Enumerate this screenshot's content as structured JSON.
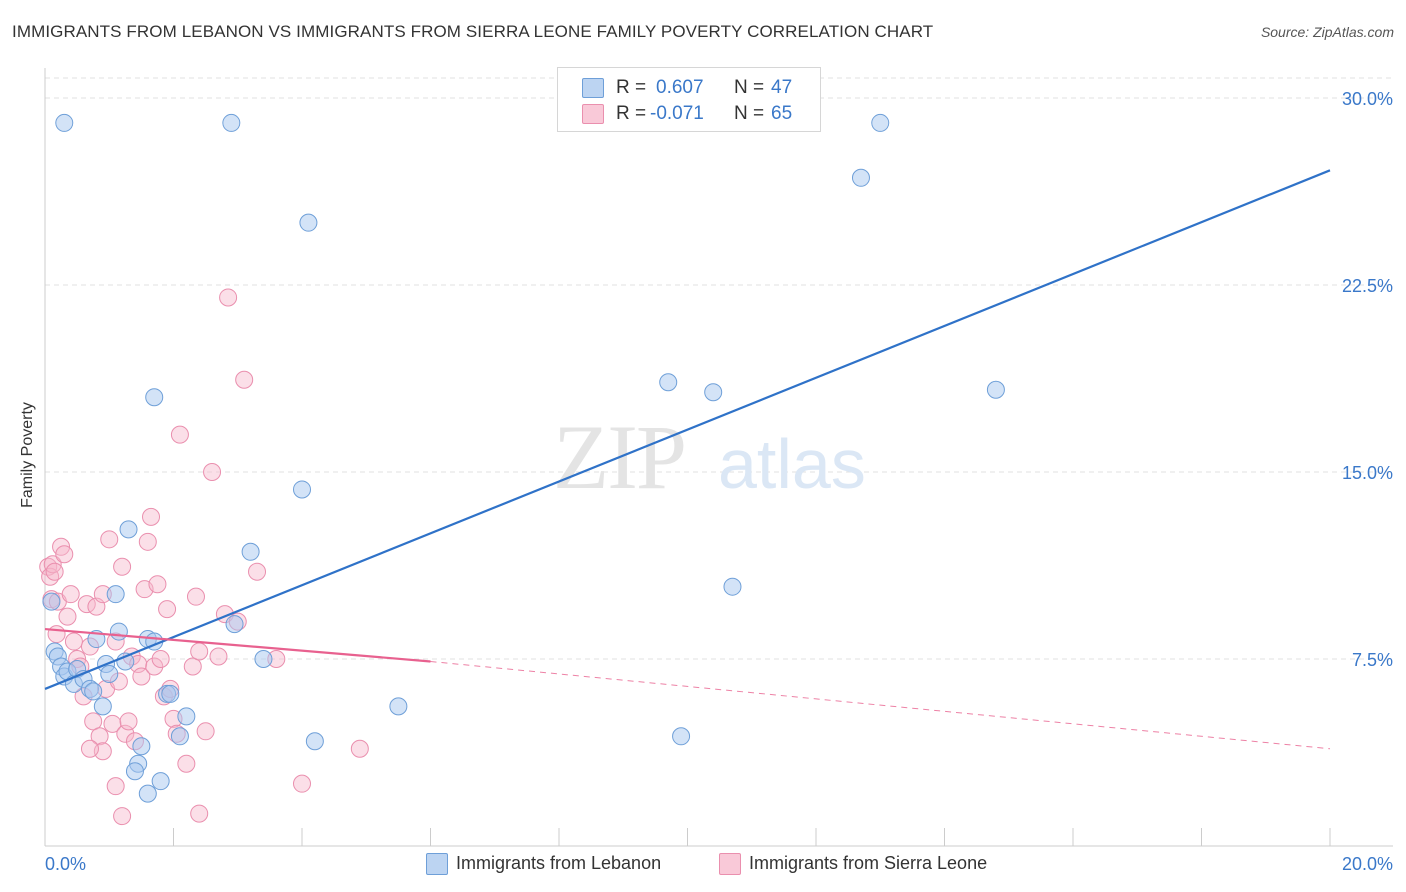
{
  "title": "IMMIGRANTS FROM LEBANON VS IMMIGRANTS FROM SIERRA LEONE FAMILY POVERTY CORRELATION CHART",
  "source": "Source: ZipAtlas.com",
  "watermark": {
    "zip": "ZIP",
    "atlas": "atlas"
  },
  "stats": {
    "lebanon": {
      "r_label": "R =",
      "r_value": "0.607",
      "n_label": "N =",
      "n_value": "47"
    },
    "sierra": {
      "r_label": "R =",
      "r_value": "-0.071",
      "n_label": "N =",
      "n_value": "65"
    }
  },
  "legend": {
    "lebanon": "Immigrants from Lebanon",
    "sierra": "Immigrants from Sierra Leone"
  },
  "colors": {
    "lebanon_fill": "#a8c8ef",
    "lebanon_stroke": "#6e9fd8",
    "lebanon_line": "#2f72c8",
    "sierra_fill": "#f7b8cc",
    "sierra_stroke": "#ea8fae",
    "sierra_line": "#e8618f",
    "axis_text": "#3a78c9",
    "grid": "#e2e2e2"
  },
  "chart_data": {
    "type": "scatter",
    "title": "IMMIGRANTS FROM LEBANON VS IMMIGRANTS FROM SIERRA LEONE FAMILY POVERTY CORRELATION CHART",
    "xlabel": "",
    "ylabel": "Family Poverty",
    "xlim": [
      0,
      20
    ],
    "ylim": [
      0,
      30
    ],
    "x_tick_labels": [
      "0.0%",
      "20.0%"
    ],
    "y_ticks": [
      7.5,
      15.0,
      22.5,
      30.0
    ],
    "y_tick_labels": [
      "7.5%",
      "15.0%",
      "22.5%",
      "30.0%"
    ],
    "grid": true,
    "legend_position": "bottom",
    "series": [
      {
        "name": "Immigrants from Lebanon",
        "points": [
          [
            0.1,
            9.8
          ],
          [
            0.15,
            7.8
          ],
          [
            0.2,
            7.6
          ],
          [
            0.25,
            7.2
          ],
          [
            0.3,
            6.8
          ],
          [
            0.35,
            7.0
          ],
          [
            0.45,
            6.5
          ],
          [
            0.5,
            7.1
          ],
          [
            0.6,
            6.7
          ],
          [
            0.7,
            6.3
          ],
          [
            0.75,
            6.2
          ],
          [
            0.8,
            8.3
          ],
          [
            0.9,
            5.6
          ],
          [
            0.95,
            7.3
          ],
          [
            1.0,
            6.9
          ],
          [
            1.1,
            10.1
          ],
          [
            1.15,
            8.6
          ],
          [
            1.25,
            7.4
          ],
          [
            1.3,
            12.7
          ],
          [
            1.45,
            3.3
          ],
          [
            1.5,
            4.0
          ],
          [
            1.6,
            8.3
          ],
          [
            1.7,
            8.2
          ],
          [
            1.8,
            2.6
          ],
          [
            1.9,
            6.1
          ],
          [
            1.95,
            6.1
          ],
          [
            2.1,
            4.4
          ],
          [
            2.2,
            5.2
          ],
          [
            0.3,
            29.0
          ],
          [
            1.4,
            3.0
          ],
          [
            1.6,
            2.1
          ],
          [
            1.7,
            18.0
          ],
          [
            2.9,
            29.0
          ],
          [
            4.1,
            25.0
          ],
          [
            4.0,
            14.3
          ],
          [
            3.2,
            11.8
          ],
          [
            2.95,
            8.9
          ],
          [
            3.4,
            7.5
          ],
          [
            4.2,
            4.2
          ],
          [
            5.5,
            5.6
          ],
          [
            9.7,
            18.6
          ],
          [
            9.9,
            4.4
          ],
          [
            10.4,
            18.2
          ],
          [
            10.7,
            10.4
          ],
          [
            12.7,
            26.8
          ],
          [
            13.0,
            29.0
          ],
          [
            14.8,
            18.3
          ]
        ]
      },
      {
        "name": "Immigrants from Sierra Leone",
        "points": [
          [
            0.05,
            11.2
          ],
          [
            0.08,
            10.8
          ],
          [
            0.1,
            9.9
          ],
          [
            0.12,
            11.3
          ],
          [
            0.15,
            11.0
          ],
          [
            0.18,
            8.5
          ],
          [
            0.2,
            9.8
          ],
          [
            0.25,
            12.0
          ],
          [
            0.3,
            11.7
          ],
          [
            0.35,
            9.2
          ],
          [
            0.4,
            10.1
          ],
          [
            0.45,
            8.2
          ],
          [
            0.5,
            7.5
          ],
          [
            0.55,
            7.2
          ],
          [
            0.6,
            6.0
          ],
          [
            0.65,
            9.7
          ],
          [
            0.7,
            8.0
          ],
          [
            0.75,
            5.0
          ],
          [
            0.8,
            9.6
          ],
          [
            0.85,
            4.4
          ],
          [
            0.9,
            10.1
          ],
          [
            0.95,
            6.3
          ],
          [
            1.0,
            12.3
          ],
          [
            1.05,
            4.9
          ],
          [
            1.1,
            8.2
          ],
          [
            1.15,
            6.6
          ],
          [
            1.2,
            11.2
          ],
          [
            1.25,
            4.5
          ],
          [
            1.3,
            5.0
          ],
          [
            1.35,
            7.6
          ],
          [
            1.4,
            4.2
          ],
          [
            1.45,
            7.3
          ],
          [
            1.5,
            6.8
          ],
          [
            1.55,
            10.3
          ],
          [
            1.6,
            12.2
          ],
          [
            1.65,
            13.2
          ],
          [
            1.7,
            7.2
          ],
          [
            1.75,
            10.5
          ],
          [
            1.8,
            7.5
          ],
          [
            1.85,
            6.0
          ],
          [
            1.9,
            9.5
          ],
          [
            1.95,
            6.3
          ],
          [
            2.0,
            5.1
          ],
          [
            2.05,
            4.5
          ],
          [
            2.1,
            16.5
          ],
          [
            2.2,
            3.3
          ],
          [
            2.3,
            7.2
          ],
          [
            2.35,
            10.0
          ],
          [
            2.4,
            7.8
          ],
          [
            2.5,
            4.6
          ],
          [
            2.6,
            15.0
          ],
          [
            2.7,
            7.6
          ],
          [
            2.8,
            9.3
          ],
          [
            2.85,
            22.0
          ],
          [
            3.0,
            9.0
          ],
          [
            3.1,
            18.7
          ],
          [
            3.3,
            11.0
          ],
          [
            3.6,
            7.5
          ],
          [
            4.0,
            2.5
          ],
          [
            4.9,
            3.9
          ],
          [
            0.9,
            3.8
          ],
          [
            1.1,
            2.4
          ],
          [
            1.2,
            1.2
          ],
          [
            2.4,
            1.3
          ],
          [
            0.7,
            3.9
          ]
        ]
      }
    ],
    "trendlines": [
      {
        "series": "Immigrants from Lebanon",
        "x": [
          0,
          20
        ],
        "y": [
          6.3,
          27.1
        ]
      },
      {
        "series": "Immigrants from Sierra Leone",
        "x": [
          0,
          6.0
        ],
        "y": [
          8.7,
          7.4
        ],
        "dashed_extension_to": [
          20,
          3.9
        ]
      }
    ]
  }
}
